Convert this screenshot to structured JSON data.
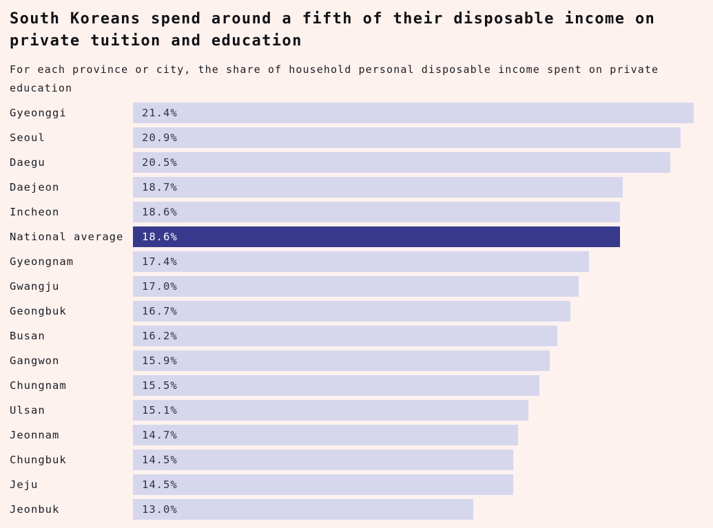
{
  "chart": {
    "title": "South Koreans spend around a fifth of their disposable income on private tuition and education",
    "subtitle": "For each province or city, the share of household personal disposable income spent on private education"
  },
  "colors": {
    "background": "#fdf2ee",
    "title_text": "#111116",
    "subtitle_text": "#1c1c24",
    "label_text": "#1b1b24",
    "bar": "#d6d7ed",
    "highlight_bar": "#373a8c",
    "value_text": "#30304e",
    "highlight_value_text": "#ffffff"
  },
  "chart_data": {
    "type": "bar",
    "orientation": "horizontal",
    "title": "South Koreans spend around a fifth of their disposable income on private tuition and education",
    "subtitle": "For each province or city, the share of household personal disposable income spent on private education",
    "xlabel": "",
    "ylabel": "",
    "xlim": [
      0,
      21.4
    ],
    "grid": false,
    "legend": false,
    "value_label_position": "inside-start",
    "categories": [
      "Gyeonggi",
      "Seoul",
      "Daegu",
      "Daejeon",
      "Incheon",
      "National average",
      "Gyeongnam",
      "Gwangju",
      "Geongbuk",
      "Busan",
      "Gangwon",
      "Chungnam",
      "Ulsan",
      "Jeonnam",
      "Chungbuk",
      "Jeju",
      "Jeonbuk"
    ],
    "values": [
      21.4,
      20.9,
      20.5,
      18.7,
      18.6,
      18.6,
      17.4,
      17.0,
      16.7,
      16.2,
      15.9,
      15.5,
      15.1,
      14.7,
      14.5,
      14.5,
      13.0
    ],
    "value_labels": [
      "21.4%",
      "20.9%",
      "20.5%",
      "18.7%",
      "18.6%",
      "18.6%",
      "17.4%",
      "17.0%",
      "16.7%",
      "16.2%",
      "15.9%",
      "15.5%",
      "15.1%",
      "14.7%",
      "14.5%",
      "14.5%",
      "13.0%"
    ],
    "highlight_category": "National average"
  }
}
